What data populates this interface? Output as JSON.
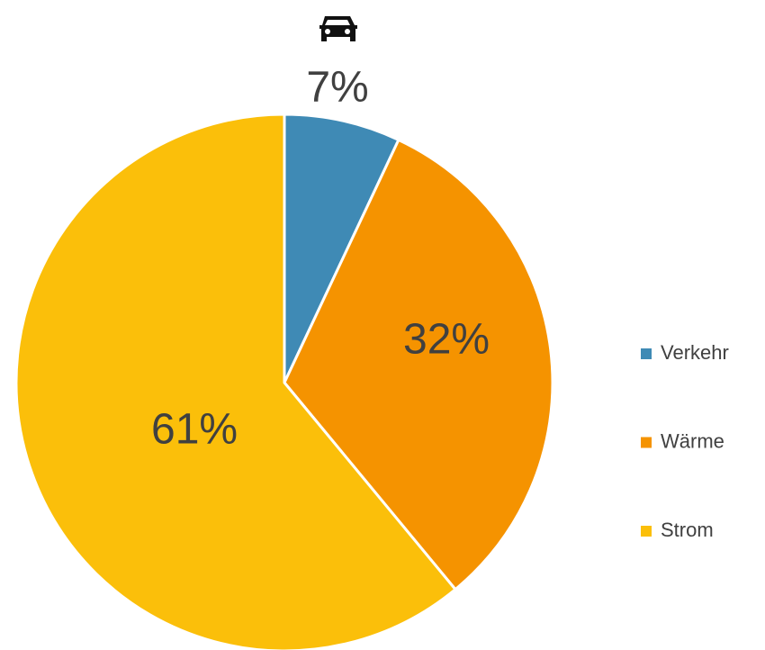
{
  "chart_data": {
    "type": "pie",
    "categories": [
      "Verkehr",
      "Wärme",
      "Strom"
    ],
    "values": [
      7,
      32,
      61
    ],
    "value_labels": [
      "7%",
      "32%",
      "61%"
    ],
    "colors": [
      "#3f8ab5",
      "#f59300",
      "#fbbf0a"
    ],
    "legend": "right"
  }
}
